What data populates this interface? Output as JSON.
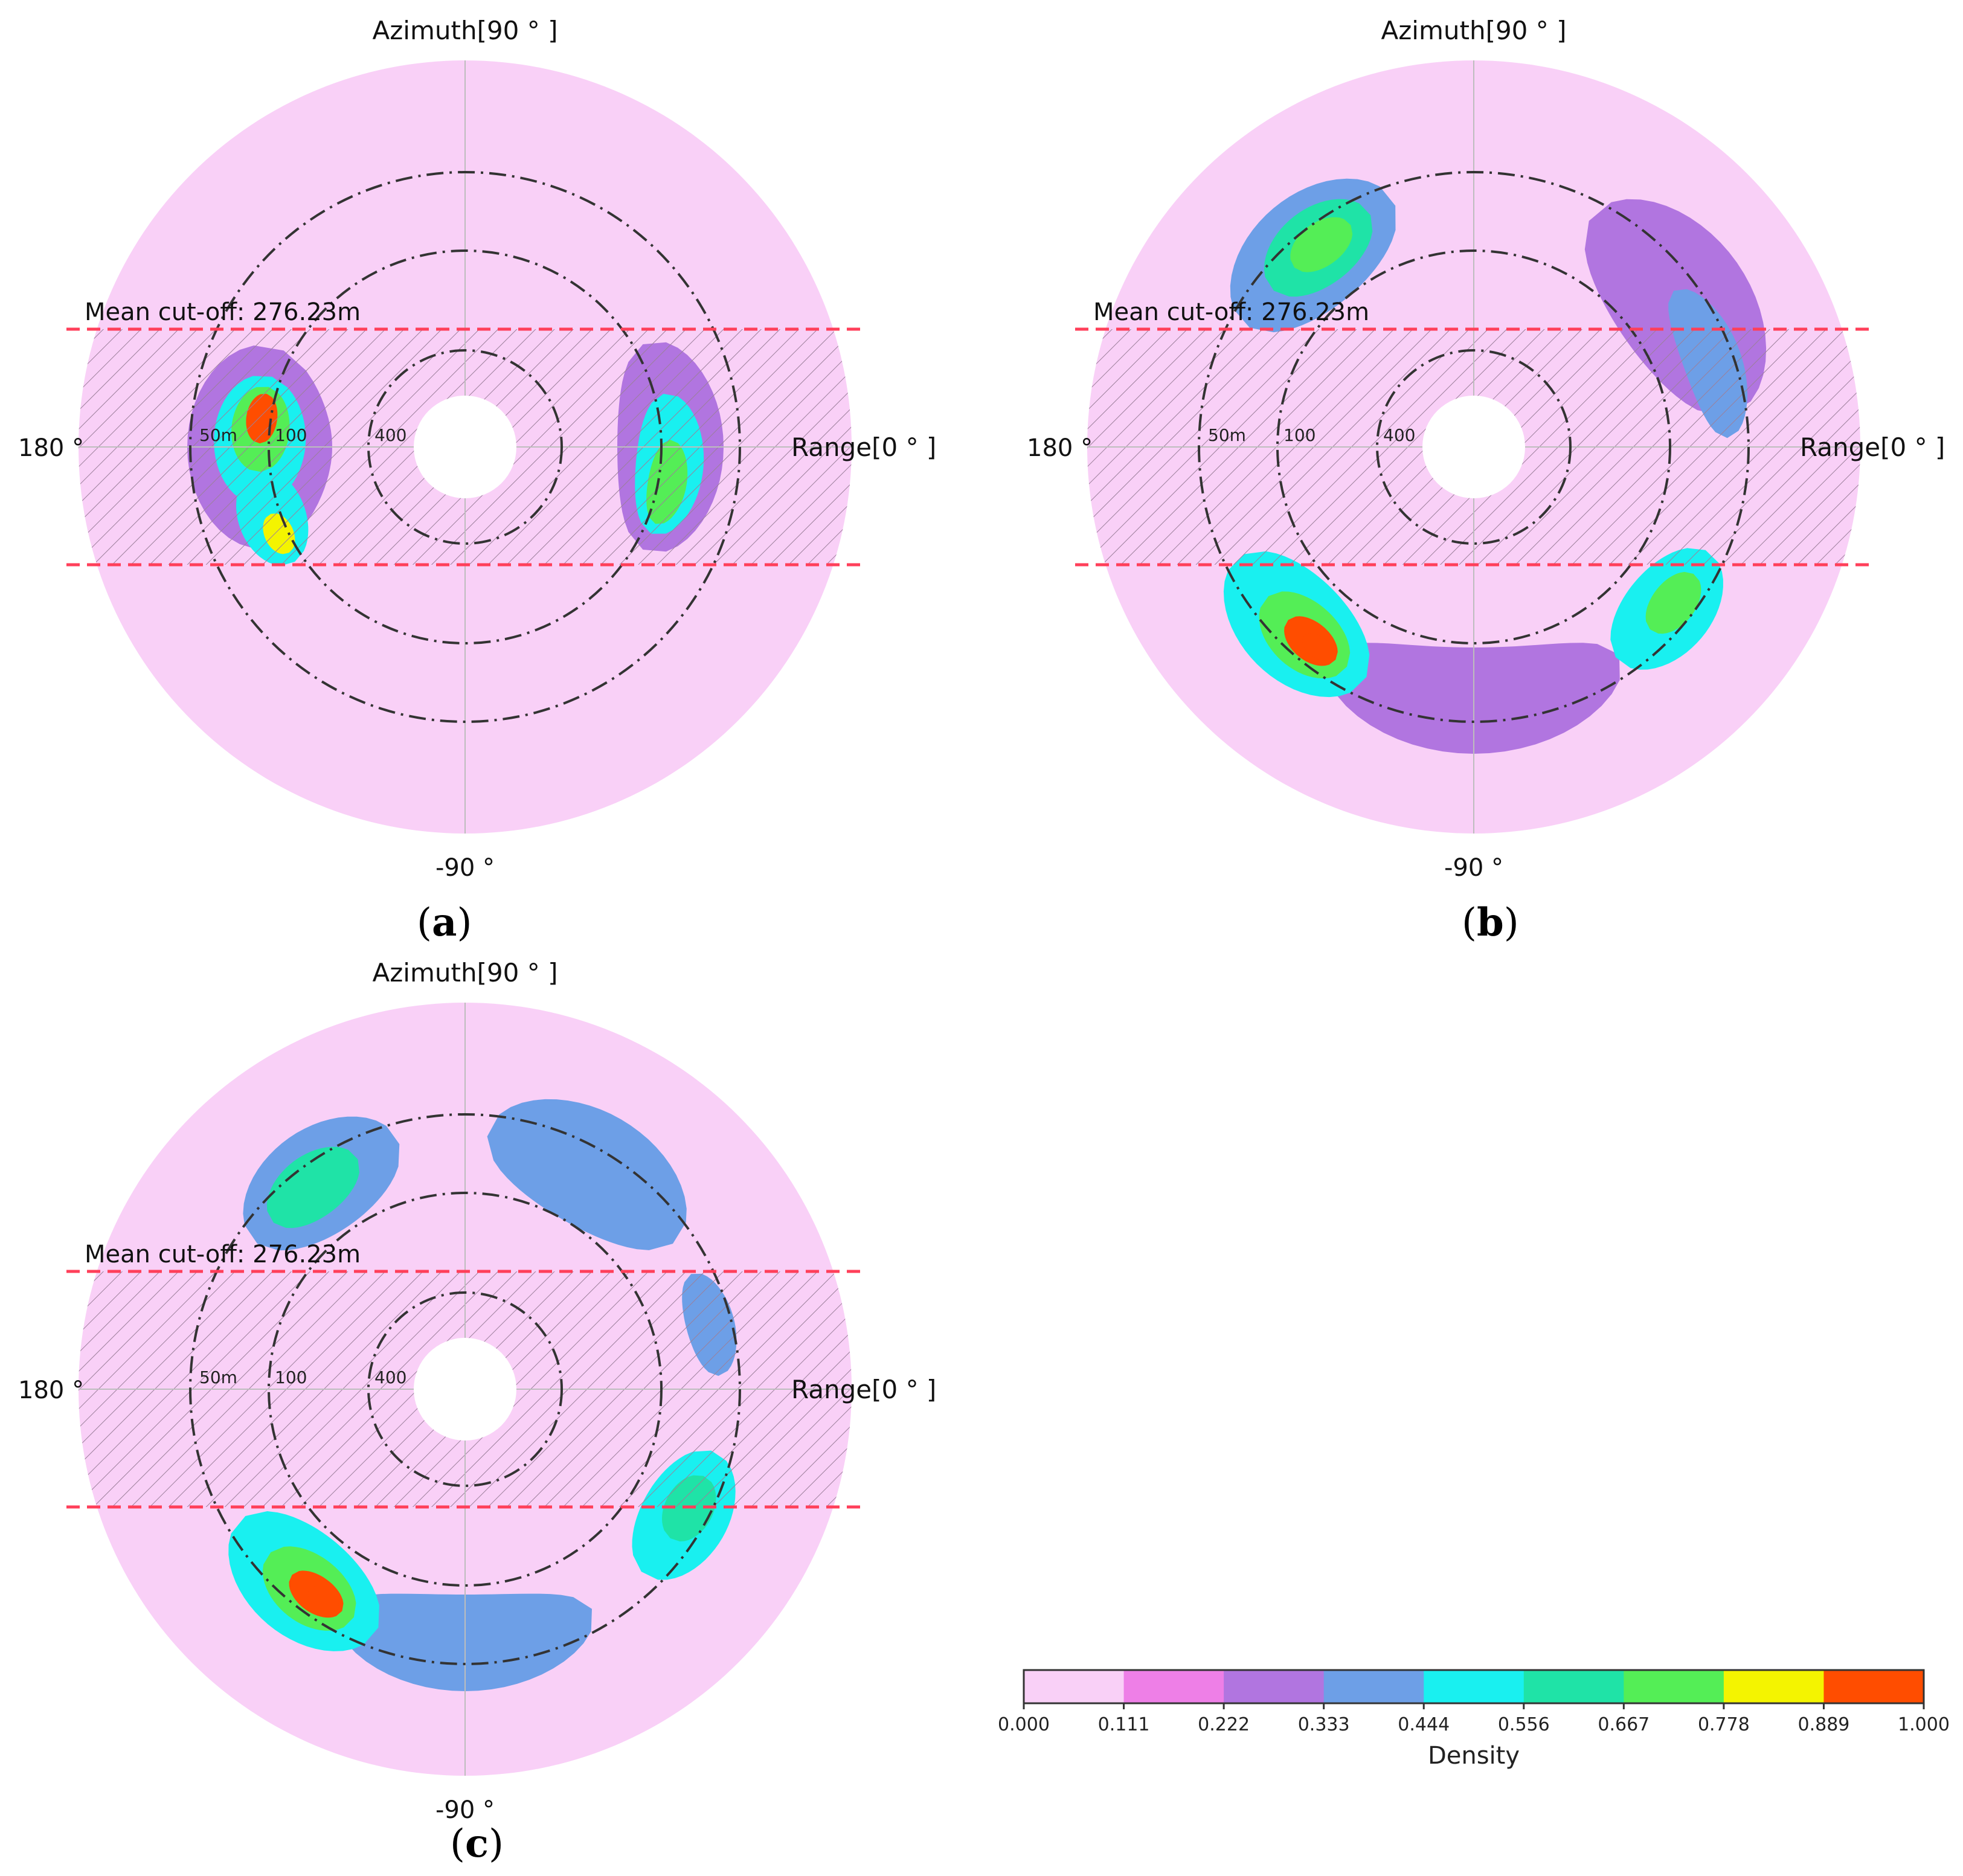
{
  "chart_data": [
    {
      "type": "polar-contour",
      "panel_label": "a",
      "labels": {
        "north": "Azimuth[90 ° ]",
        "east": "Range[0 ° ]",
        "west": "180 °",
        "south": "-90 °"
      },
      "ring_labels": [
        "50m",
        "100",
        "400"
      ],
      "cutoff": {
        "text": "Mean cut-off: 276.23m"
      },
      "blobs": [
        {
          "az": 180,
          "level": 2,
          "rw": 150,
          "tw": 28
        },
        {
          "az": 178,
          "level": 4,
          "rw": 95,
          "tw": 18
        },
        {
          "az": 175,
          "level": 6,
          "rw": 60,
          "tw": 12
        },
        {
          "az": 172,
          "level": 9,
          "rw": 32,
          "tw": 7
        },
        {
          "az": 200,
          "level": 4,
          "rw": 70,
          "tw": 14
        },
        {
          "az": 205,
          "level": 7,
          "rw": 30,
          "tw": 6
        },
        {
          "az": 0,
          "level": 2,
          "rw": 110,
          "tw": 30
        },
        {
          "az": 355,
          "level": 4,
          "rw": 70,
          "tw": 20
        },
        {
          "az": 350,
          "level": 6,
          "rw": 40,
          "tw": 12
        }
      ]
    },
    {
      "type": "polar-contour",
      "panel_label": "b",
      "labels": {
        "north": "Azimuth[90 ° ]",
        "east": "Range[0 ° ]",
        "west": "180 °",
        "south": "-90 °"
      },
      "ring_labels": [
        "50m",
        "100",
        "400"
      ],
      "cutoff": {
        "text": "Mean cut-off: 276.23m"
      },
      "blobs": [
        {
          "az": 35,
          "level": 2,
          "rw": 140,
          "tw": 28
        },
        {
          "az": 130,
          "level": 3,
          "rw": 120,
          "tw": 22
        },
        {
          "az": 128,
          "level": 5,
          "rw": 80,
          "tw": 14
        },
        {
          "az": 127,
          "level": 6,
          "rw": 45,
          "tw": 8
        },
        {
          "az": 225,
          "level": 4,
          "rw": 110,
          "tw": 20
        },
        {
          "az": 228,
          "level": 6,
          "rw": 70,
          "tw": 12
        },
        {
          "az": 230,
          "level": 8,
          "rw": 40,
          "tw": 7
        },
        {
          "az": 232,
          "level": 9,
          "rw": 22,
          "tw": 4
        },
        {
          "az": 270,
          "level": 2,
          "rw": 110,
          "tw": 35
        },
        {
          "az": 320,
          "level": 4,
          "rw": 90,
          "tw": 16
        },
        {
          "az": 322,
          "level": 6,
          "rw": 45,
          "tw": 8
        },
        {
          "az": 20,
          "level": 3,
          "rw": 60,
          "tw": 18
        }
      ]
    },
    {
      "type": "polar-contour",
      "panel_label": "c",
      "labels": {
        "north": "Azimuth[90 ° ]",
        "east": "Range[0 ° ]",
        "west": "180 °",
        "south": "-90 °"
      },
      "ring_labels": [
        "50m",
        "100",
        "400"
      ],
      "cutoff": {
        "text": "Mean cut-off: 276.23m"
      },
      "blobs": [
        {
          "az": 125,
          "level": 3,
          "rw": 110,
          "tw": 20
        },
        {
          "az": 127,
          "level": 5,
          "rw": 65,
          "tw": 12
        },
        {
          "az": 60,
          "level": 3,
          "rw": 120,
          "tw": 25
        },
        {
          "az": 230,
          "level": 4,
          "rw": 110,
          "tw": 20
        },
        {
          "az": 232,
          "level": 6,
          "rw": 70,
          "tw": 12
        },
        {
          "az": 234,
          "level": 8,
          "rw": 38,
          "tw": 7
        },
        {
          "az": 236,
          "level": 9,
          "rw": 20,
          "tw": 4
        },
        {
          "az": 270,
          "level": 3,
          "rw": 100,
          "tw": 30
        },
        {
          "az": 330,
          "level": 4,
          "rw": 90,
          "tw": 16
        },
        {
          "az": 332,
          "level": 5,
          "rw": 50,
          "tw": 8
        },
        {
          "az": 15,
          "level": 3,
          "rw": 50,
          "tw": 12
        }
      ]
    }
  ],
  "colorbar": {
    "title": "Density",
    "ticks": [
      "0.000",
      "0.111",
      "0.222",
      "0.333",
      "0.444",
      "0.556",
      "0.667",
      "0.778",
      "0.889",
      "1.000"
    ],
    "colors": [
      "#f9d0f7",
      "#ee7fe7",
      "#b175e0",
      "#6d9fe7",
      "#19f0f0",
      "#1fe3a7",
      "#54ee56",
      "#f4f400",
      "#ff4d00"
    ]
  }
}
